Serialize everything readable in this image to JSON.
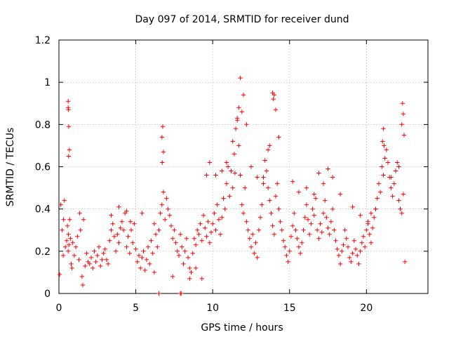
{
  "chart_data": {
    "type": "scatter",
    "title": "Day 097 of 2014, SRMTID for receiver dund",
    "xlabel": "GPS time / hours",
    "ylabel": "SRMTID / TECUs",
    "xlim": [
      0,
      24
    ],
    "ylim": [
      0,
      1.2
    ],
    "xticks": [
      0,
      5,
      10,
      15,
      20
    ],
    "xtick_labels": [
      "0",
      "5",
      "10",
      "15",
      "20"
    ],
    "yticks": [
      0,
      0.2,
      0.4,
      0.6,
      0.8,
      1.0,
      1.2
    ],
    "ytick_labels": [
      "0",
      "0.2",
      "0.4",
      "0.6",
      "0.8",
      "1",
      "1.2"
    ],
    "grid": true,
    "marker": "plus",
    "series": [
      {
        "name": "SRMTID",
        "color": "#ff0000",
        "x": [
          0.05,
          0.12,
          0.2,
          0.28,
          0.35,
          0.42,
          0.5,
          0.55,
          0.6,
          0.62,
          0.65,
          0.7,
          0.75,
          0.8,
          0.85,
          0.9,
          1.0,
          1.1,
          1.2,
          1.3,
          1.4,
          1.5,
          1.55,
          1.6,
          1.7,
          1.8,
          1.9,
          2.0,
          2.1,
          2.2,
          2.3,
          2.4,
          2.5,
          2.6,
          2.7,
          2.8,
          2.9,
          3.0,
          3.1,
          3.2,
          3.3,
          3.4,
          3.5,
          3.6,
          3.7,
          3.8,
          3.9,
          4.0,
          4.1,
          4.2,
          4.3,
          4.4,
          4.5,
          4.6,
          4.7,
          4.8,
          4.9,
          5.0,
          5.1,
          5.2,
          5.3,
          5.4,
          5.5,
          5.6,
          5.7,
          5.8,
          5.9,
          6.0,
          6.1,
          6.2,
          6.3,
          6.4,
          6.5,
          6.6,
          6.7,
          6.8,
          6.9,
          7.0,
          7.1,
          7.2,
          7.3,
          7.4,
          7.5,
          7.6,
          7.7,
          7.8,
          7.9,
          8.0,
          8.1,
          8.2,
          8.3,
          8.4,
          8.5,
          8.6,
          8.7,
          8.8,
          8.9,
          9.0,
          9.1,
          9.2,
          9.3,
          9.4,
          9.5,
          9.6,
          9.7,
          9.8,
          9.9,
          10.0,
          10.1,
          10.2,
          10.3,
          10.4,
          10.5,
          10.6,
          10.7,
          10.8,
          10.9,
          11.0,
          11.1,
          11.2,
          11.3,
          11.4,
          11.5,
          11.6,
          11.7,
          11.8,
          11.9,
          12.0,
          12.1,
          12.2,
          12.3,
          12.4,
          12.5,
          12.6,
          12.7,
          12.8,
          12.9,
          13.0,
          13.1,
          13.2,
          13.3,
          13.4,
          13.5,
          13.6,
          13.7,
          13.8,
          13.9,
          14.0,
          14.1,
          14.2,
          14.3,
          14.4,
          14.5,
          14.6,
          14.7,
          14.8,
          14.9,
          15.0,
          15.1,
          15.2,
          15.3,
          15.4,
          15.5,
          15.6,
          15.7,
          15.8,
          15.9,
          16.0,
          16.1,
          16.2,
          16.3,
          16.4,
          16.5,
          16.6,
          16.7,
          16.8,
          16.9,
          17.0,
          17.1,
          17.2,
          17.3,
          17.4,
          17.5,
          17.6,
          17.7,
          17.8,
          17.9,
          18.0,
          18.1,
          18.2,
          18.3,
          18.4,
          18.5,
          18.6,
          18.7,
          18.8,
          18.9,
          19.0,
          19.1,
          19.2,
          19.3,
          19.4,
          19.5,
          19.6,
          19.7,
          19.8,
          19.9,
          20.0,
          20.1,
          20.2,
          20.3,
          20.4,
          20.5,
          20.6,
          20.7,
          20.8,
          20.9,
          21.0,
          21.1,
          21.2,
          21.3,
          21.4,
          21.5,
          21.6,
          21.7,
          21.8,
          21.9,
          22.0,
          22.1,
          22.2,
          22.3,
          22.4,
          22.5,
          0.6,
          0.62,
          0.6,
          0.64,
          0.68,
          0.63,
          6.75,
          6.7,
          6.8,
          6.72,
          11.8,
          12.0,
          11.7,
          11.9,
          11.6,
          12.2,
          13.9,
          14.0,
          13.95,
          14.1,
          14.3,
          13.7,
          13.6,
          22.35,
          22.4,
          22.3,
          22.45,
          21.1,
          21.05,
          21.15,
          16.9,
          17.2,
          17.5,
          17.8,
          18.3,
          20.3,
          20.6,
          9.6,
          9.8,
          10.2,
          10.6,
          10.9,
          11.3,
          11.45,
          12.5,
          12.9,
          13.3,
          15.2,
          15.6,
          16.1,
          16.6,
          19.1,
          19.6,
          20.1,
          21.6,
          21.9,
          22.1,
          0.3,
          1.35,
          3.4,
          3.9,
          4.4,
          4.65,
          5.4,
          6.2,
          7.4,
          8.5,
          8.9,
          9.3,
          6.5,
          7.9,
          7.95
        ],
        "y": [
          0.09,
          0.42,
          0.3,
          0.18,
          0.44,
          0.22,
          0.25,
          0.32,
          0.2,
          0.28,
          0.23,
          0.35,
          0.26,
          0.14,
          0.12,
          0.24,
          0.18,
          0.22,
          0.27,
          0.16,
          0.3,
          0.08,
          0.04,
          0.35,
          0.13,
          0.19,
          0.15,
          0.14,
          0.17,
          0.12,
          0.2,
          0.15,
          0.18,
          0.22,
          0.13,
          0.16,
          0.19,
          0.21,
          0.16,
          0.14,
          0.25,
          0.3,
          0.33,
          0.27,
          0.2,
          0.28,
          0.24,
          0.31,
          0.34,
          0.3,
          0.38,
          0.22,
          0.27,
          0.19,
          0.3,
          0.24,
          0.33,
          0.21,
          0.15,
          0.18,
          0.12,
          0.17,
          0.2,
          0.11,
          0.16,
          0.22,
          0.14,
          0.25,
          0.19,
          0.33,
          0.28,
          0.22,
          0.3,
          0.38,
          0.42,
          0.48,
          0.35,
          0.45,
          0.4,
          0.37,
          0.32,
          0.26,
          0.3,
          0.24,
          0.2,
          0.18,
          0.28,
          0.22,
          0.14,
          0.2,
          0.26,
          0.17,
          0.12,
          0.1,
          0.19,
          0.26,
          0.23,
          0.3,
          0.28,
          0.33,
          0.25,
          0.37,
          0.31,
          0.27,
          0.34,
          0.24,
          0.29,
          0.33,
          0.38,
          0.3,
          0.42,
          0.35,
          0.28,
          0.36,
          0.45,
          0.4,
          0.52,
          0.6,
          0.46,
          0.58,
          0.72,
          0.66,
          0.78,
          0.82,
          0.7,
          0.56,
          0.42,
          0.38,
          0.5,
          0.34,
          0.3,
          0.26,
          0.22,
          0.28,
          0.19,
          0.24,
          0.17,
          0.3,
          0.36,
          0.42,
          0.55,
          0.63,
          0.58,
          0.5,
          0.44,
          0.38,
          0.32,
          0.28,
          0.46,
          0.52,
          0.4,
          0.34,
          0.3,
          0.25,
          0.22,
          0.18,
          0.15,
          0.2,
          0.27,
          0.32,
          0.38,
          0.3,
          0.26,
          0.22,
          0.19,
          0.24,
          0.3,
          0.36,
          0.42,
          0.35,
          0.28,
          0.33,
          0.4,
          0.37,
          0.45,
          0.3,
          0.26,
          0.33,
          0.29,
          0.38,
          0.44,
          0.36,
          0.31,
          0.28,
          0.34,
          0.4,
          0.3,
          0.25,
          0.21,
          0.18,
          0.14,
          0.2,
          0.23,
          0.3,
          0.26,
          0.22,
          0.17,
          0.15,
          0.19,
          0.25,
          0.21,
          0.18,
          0.14,
          0.2,
          0.24,
          0.27,
          0.22,
          0.3,
          0.33,
          0.28,
          0.24,
          0.31,
          0.36,
          0.4,
          0.45,
          0.52,
          0.48,
          0.6,
          0.56,
          0.64,
          0.68,
          0.62,
          0.55,
          0.5,
          0.46,
          0.52,
          0.58,
          0.62,
          0.44,
          0.4,
          0.38,
          0.47,
          0.15,
          0.91,
          0.87,
          0.88,
          0.79,
          0.68,
          0.65,
          0.79,
          0.74,
          0.67,
          0.62,
          1.02,
          0.94,
          0.88,
          0.86,
          0.83,
          0.8,
          0.95,
          0.94,
          0.92,
          0.87,
          0.74,
          0.7,
          0.68,
          0.9,
          0.85,
          0.8,
          0.75,
          0.78,
          0.72,
          0.7,
          0.57,
          0.52,
          0.59,
          0.55,
          0.47,
          0.38,
          0.4,
          0.56,
          0.62,
          0.56,
          0.58,
          0.62,
          0.5,
          0.57,
          0.6,
          0.55,
          0.52,
          0.53,
          0.48,
          0.5,
          0.47,
          0.41,
          0.37,
          0.34,
          0.55,
          0.58,
          0.6,
          0.35,
          0.38,
          0.37,
          0.41,
          0.39,
          0.34,
          0.38,
          0.1,
          0.08,
          0.07,
          0.12,
          0.07,
          0.0,
          0.0,
          0.0
        ]
      }
    ]
  }
}
